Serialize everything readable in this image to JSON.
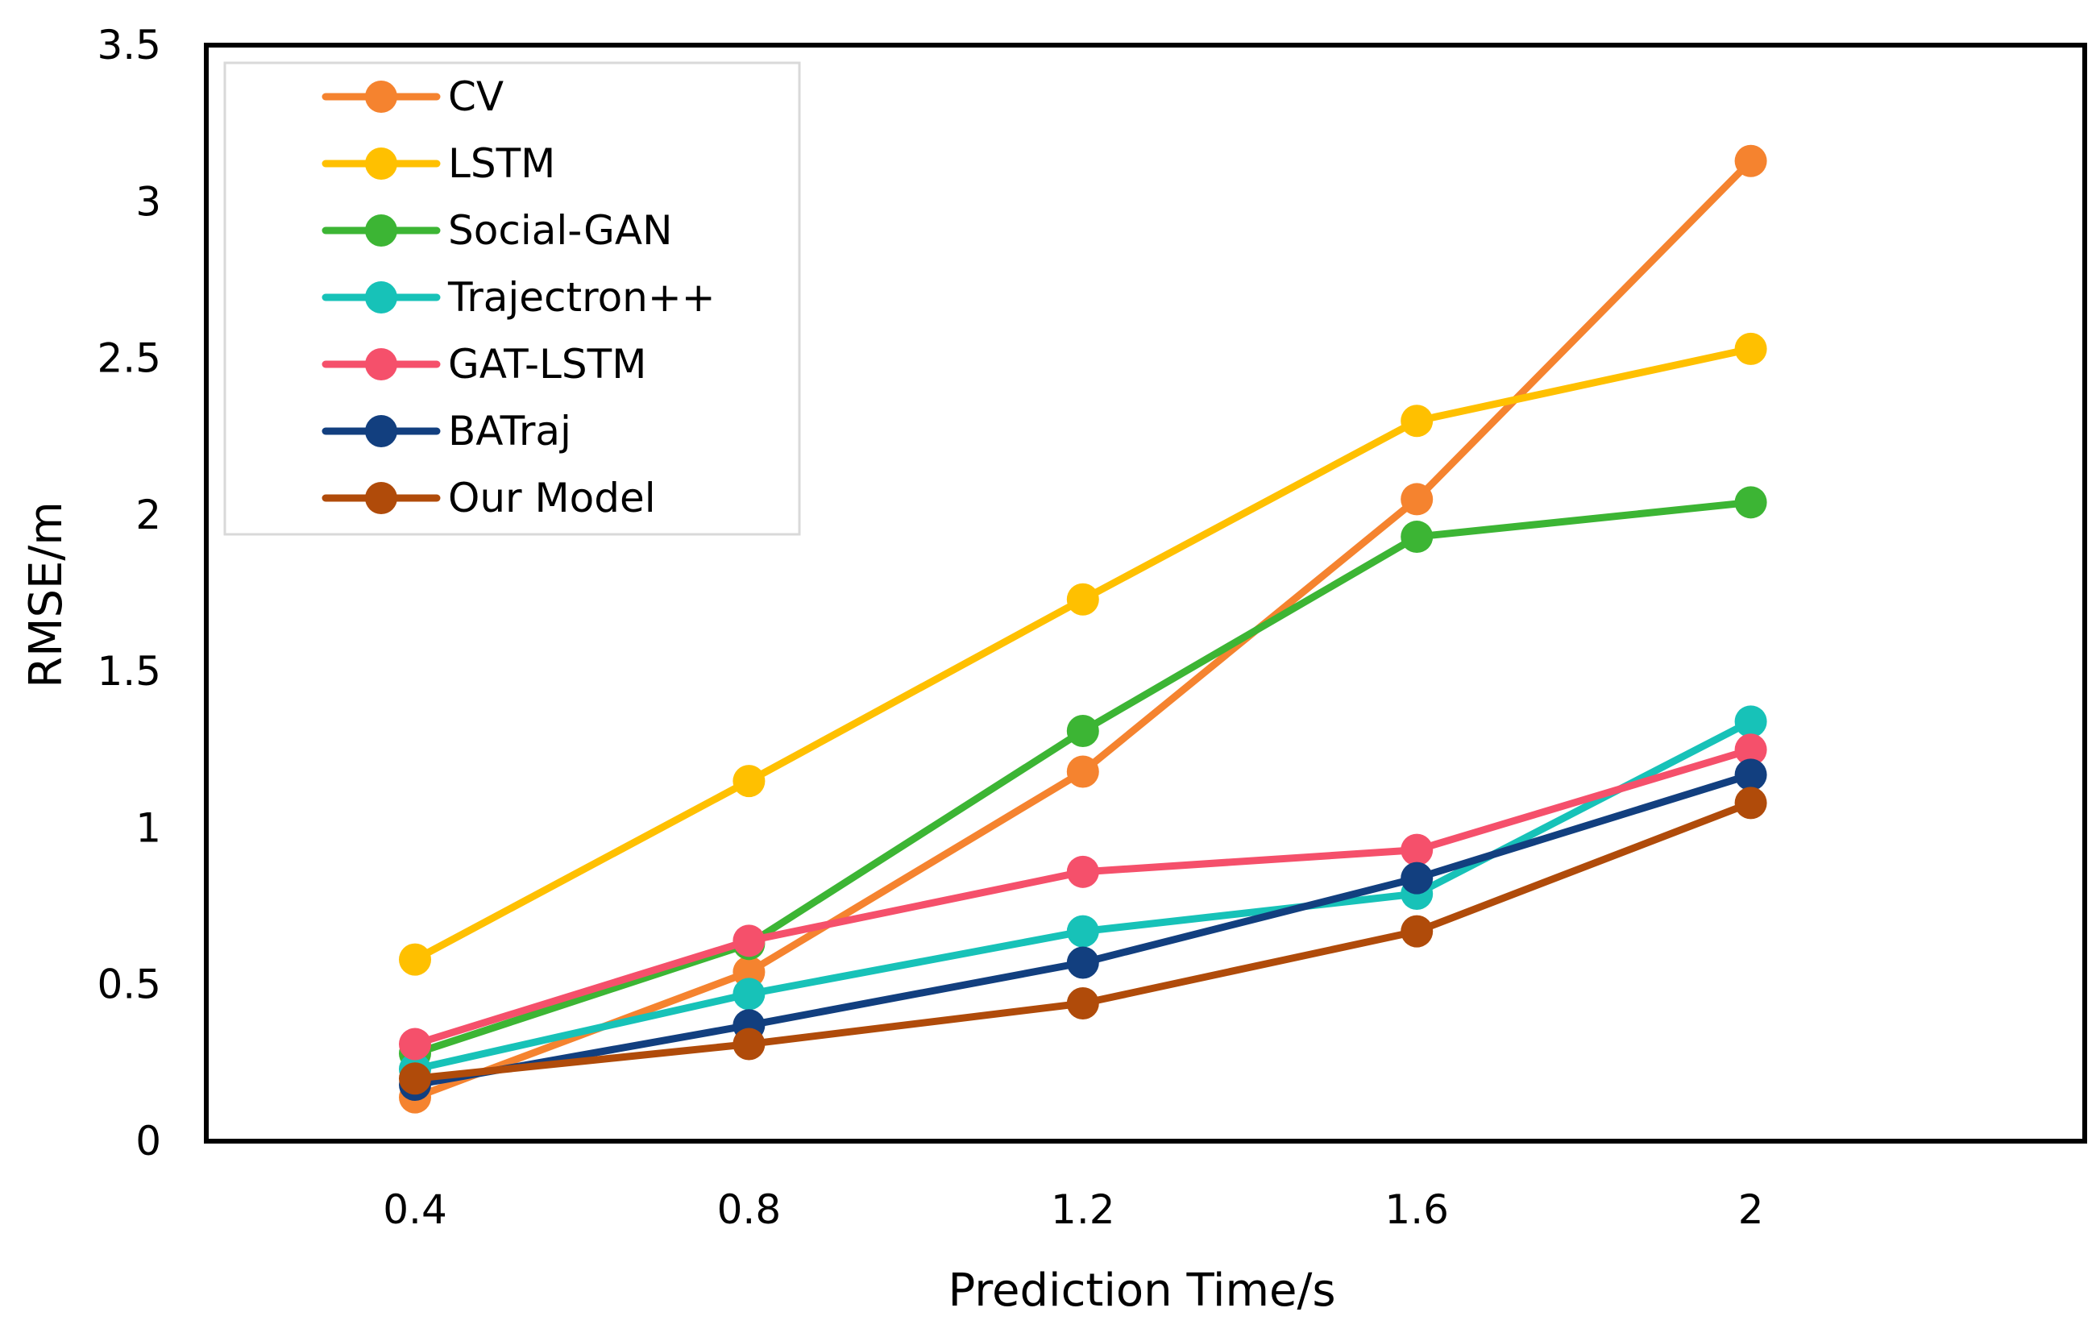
{
  "chart_data": {
    "type": "line",
    "x": [
      0.4,
      0.8,
      1.2,
      1.6,
      2
    ],
    "x_tick_labels": [
      "0.4",
      "0.8",
      "1.2",
      "1.6",
      "2"
    ],
    "y_tick_labels": [
      "0",
      "0.5",
      "1",
      "1.5",
      "2",
      "2.5",
      "3",
      "3.5"
    ],
    "ylim": [
      0,
      3.5
    ],
    "xlabel": "Prediction Time/s",
    "ylabel": "RMSE/m",
    "title": "",
    "grid": false,
    "legend_position": "top-left",
    "series": [
      {
        "name": "CV",
        "color": "#F5832F",
        "values": [
          0.14,
          0.54,
          1.18,
          2.05,
          3.13
        ]
      },
      {
        "name": "LSTM",
        "color": "#FFC000",
        "values": [
          0.58,
          1.15,
          1.73,
          2.3,
          2.53
        ]
      },
      {
        "name": "Social-GAN",
        "color": "#3CB534",
        "values": [
          0.28,
          0.63,
          1.31,
          1.93,
          2.04
        ]
      },
      {
        "name": "Trajectron++",
        "color": "#17C2B8",
        "values": [
          0.23,
          0.47,
          0.67,
          0.79,
          1.34
        ]
      },
      {
        "name": "GAT-LSTM",
        "color": "#F5506B",
        "values": [
          0.31,
          0.64,
          0.86,
          0.93,
          1.25
        ]
      },
      {
        "name": "BATraj",
        "color": "#123F7F",
        "values": [
          0.18,
          0.37,
          0.57,
          0.84,
          1.17
        ]
      },
      {
        "name": "Our Model",
        "color": "#B04B0A",
        "values": [
          0.2,
          0.31,
          0.44,
          0.67,
          1.08
        ]
      }
    ]
  }
}
